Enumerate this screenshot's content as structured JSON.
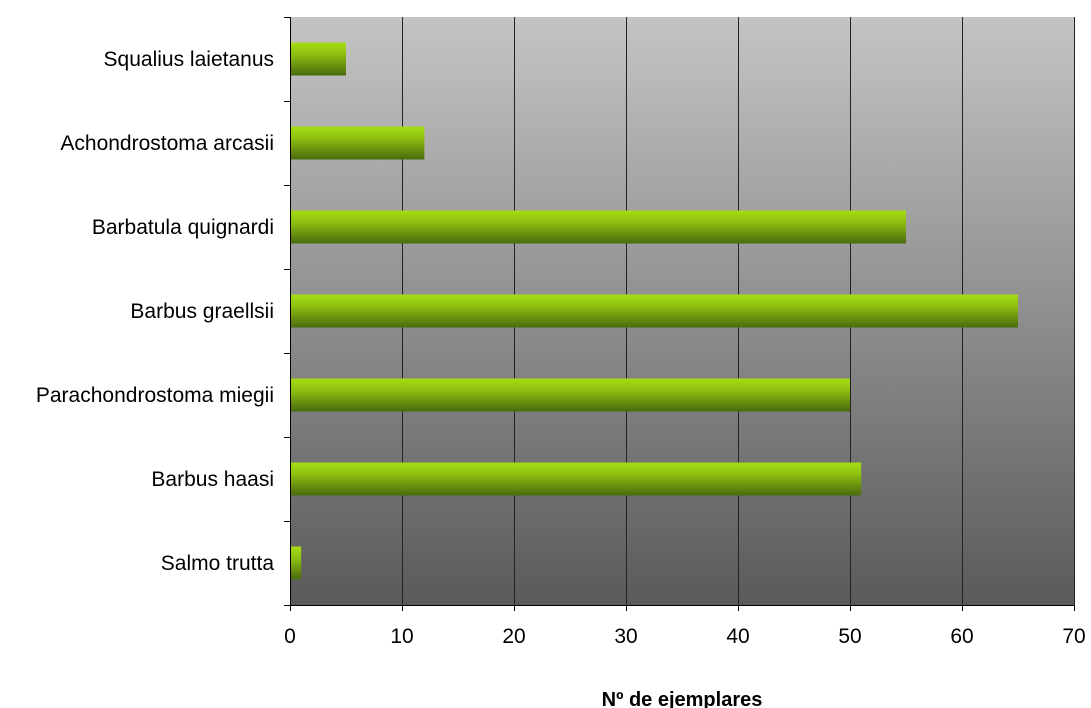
{
  "chart_data": {
    "type": "bar",
    "orientation": "horizontal",
    "categories": [
      "Squalius laietanus",
      "Achondrostoma arcasii",
      "Barbatula quignardi",
      "Barbus graellsii",
      "Parachondrostoma miegii",
      "Barbus haasi",
      "Salmo trutta"
    ],
    "values": [
      5,
      12,
      55,
      65,
      50,
      51,
      1
    ],
    "xlabel": "Nº de ejemplares",
    "ylabel": "",
    "title": "",
    "xlim": [
      0,
      70
    ],
    "xticks": [
      0,
      10,
      20,
      30,
      40,
      50,
      60,
      70
    ],
    "xtick_labels": [
      "0",
      "10",
      "20",
      "30",
      "40",
      "50",
      "60",
      "70"
    ],
    "grid": "vertical",
    "legend": "none",
    "colors": {
      "plot_bg_top": "#c4c4c4",
      "plot_bg_bottom": "#5a5a5a",
      "bar_top": "#a6dc14",
      "bar_bottom": "#4a6a0e",
      "grid": "#222222",
      "axis": "#000000"
    }
  }
}
